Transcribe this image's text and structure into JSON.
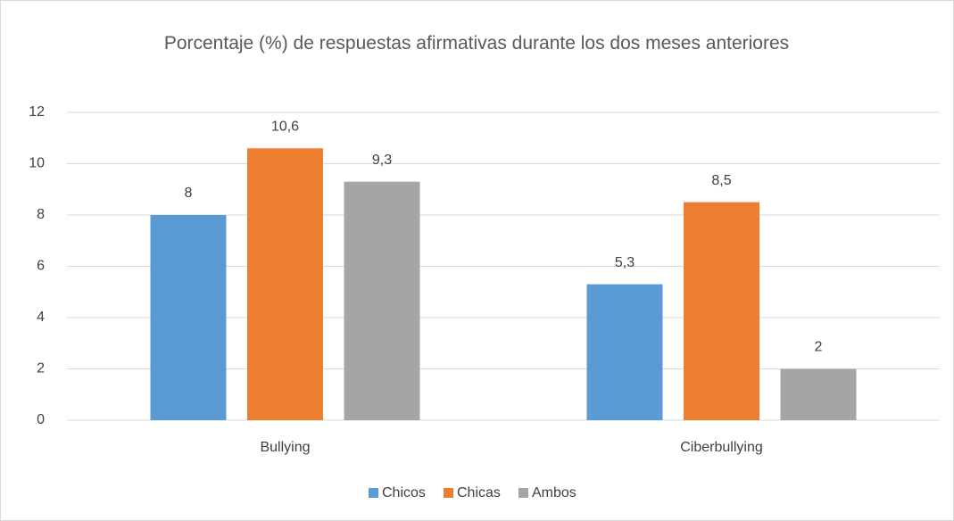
{
  "chart_data": {
    "type": "bar",
    "title": "Porcentaje (%) de respuestas afirmativas durante los dos meses anteriores",
    "categories": [
      "Bullying",
      "Ciberbullying"
    ],
    "series": [
      {
        "name": "Chicos",
        "color": "#5b9bd5",
        "values": [
          8,
          5.3
        ],
        "value_labels": [
          "8",
          "5,3"
        ]
      },
      {
        "name": "Chicas",
        "color": "#ed7d31",
        "values": [
          10.6,
          8.5
        ],
        "value_labels": [
          "10,6",
          "8,5"
        ]
      },
      {
        "name": "Ambos",
        "color": "#a5a5a5",
        "values": [
          9.3,
          2
        ],
        "value_labels": [
          "9,3",
          "2"
        ]
      }
    ],
    "ylim": [
      0,
      12
    ],
    "yticks": [
      0,
      2,
      4,
      6,
      8,
      10,
      12
    ],
    "grid": true,
    "legend": "bottom"
  }
}
